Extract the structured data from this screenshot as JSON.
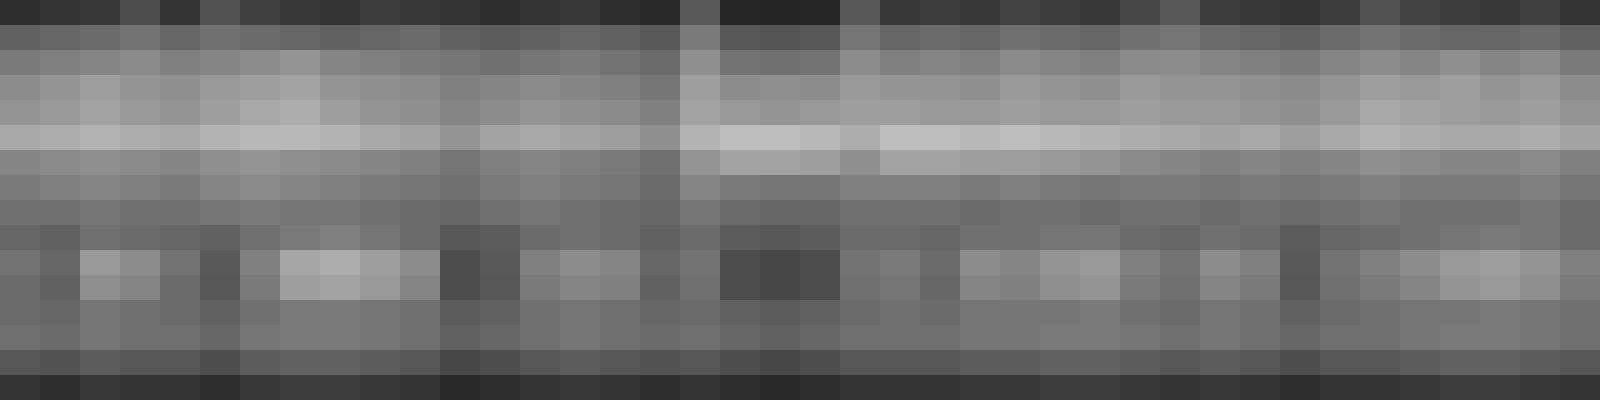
{
  "chart_data": {
    "type": "heatmap",
    "tick_labels": false,
    "color_range": [
      0,
      100
    ],
    "cells": [
      [
        18,
        20,
        22,
        30,
        20,
        32,
        25,
        22,
        20,
        24,
        22,
        20,
        18,
        20,
        22,
        18,
        16,
        35,
        15,
        14,
        15,
        34,
        22,
        24,
        22,
        26,
        24,
        22,
        28,
        34,
        24,
        22,
        20,
        24,
        32,
        26,
        24,
        22,
        25,
        20
      ],
      [
        38,
        40,
        42,
        45,
        40,
        44,
        42,
        40,
        38,
        40,
        42,
        38,
        36,
        38,
        40,
        38,
        35,
        48,
        34,
        33,
        34,
        46,
        40,
        42,
        40,
        44,
        42,
        40,
        44,
        46,
        42,
        40,
        38,
        42,
        45,
        42,
        40,
        40,
        42,
        38
      ],
      [
        48,
        50,
        52,
        54,
        50,
        52,
        55,
        58,
        52,
        50,
        48,
        46,
        44,
        46,
        48,
        45,
        42,
        56,
        45,
        44,
        45,
        55,
        50,
        52,
        50,
        54,
        52,
        50,
        54,
        55,
        52,
        50,
        48,
        52,
        55,
        52,
        56,
        52,
        54,
        48
      ],
      [
        55,
        58,
        62,
        58,
        56,
        60,
        62,
        64,
        58,
        56,
        54,
        50,
        52,
        54,
        52,
        50,
        46,
        62,
        55,
        56,
        55,
        60,
        58,
        58,
        56,
        60,
        58,
        56,
        60,
        58,
        58,
        56,
        54,
        58,
        62,
        60,
        62,
        58,
        60,
        55
      ],
      [
        58,
        60,
        64,
        60,
        58,
        62,
        66,
        68,
        62,
        58,
        56,
        52,
        55,
        58,
        56,
        54,
        50,
        64,
        60,
        58,
        60,
        62,
        62,
        60,
        60,
        62,
        60,
        60,
        62,
        60,
        60,
        58,
        56,
        60,
        66,
        64,
        62,
        60,
        62,
        58
      ],
      [
        66,
        68,
        70,
        68,
        66,
        70,
        72,
        72,
        70,
        66,
        64,
        58,
        64,
        66,
        64,
        62,
        56,
        70,
        74,
        74,
        72,
        68,
        74,
        74,
        72,
        74,
        72,
        70,
        68,
        66,
        64,
        66,
        62,
        66,
        70,
        68,
        66,
        66,
        68,
        64
      ],
      [
        52,
        54,
        56,
        54,
        52,
        56,
        58,
        56,
        54,
        52,
        50,
        46,
        50,
        52,
        50,
        48,
        44,
        58,
        64,
        64,
        62,
        56,
        64,
        64,
        62,
        62,
        60,
        58,
        54,
        52,
        50,
        52,
        50,
        52,
        56,
        54,
        52,
        52,
        54,
        50
      ],
      [
        48,
        50,
        52,
        50,
        48,
        52,
        54,
        52,
        50,
        48,
        46,
        44,
        48,
        50,
        48,
        46,
        42,
        52,
        48,
        46,
        46,
        50,
        50,
        50,
        48,
        50,
        48,
        46,
        48,
        48,
        46,
        48,
        46,
        48,
        50,
        48,
        48,
        48,
        50,
        46
      ],
      [
        44,
        44,
        46,
        44,
        44,
        46,
        48,
        46,
        46,
        44,
        42,
        40,
        44,
        46,
        44,
        42,
        40,
        46,
        42,
        40,
        40,
        44,
        44,
        44,
        42,
        44,
        44,
        42,
        44,
        44,
        42,
        44,
        42,
        44,
        46,
        44,
        44,
        44,
        46,
        42
      ],
      [
        40,
        38,
        44,
        42,
        40,
        38,
        44,
        48,
        50,
        46,
        42,
        34,
        36,
        42,
        44,
        42,
        38,
        42,
        36,
        34,
        36,
        42,
        42,
        40,
        44,
        44,
        46,
        46,
        42,
        40,
        44,
        42,
        36,
        40,
        42,
        44,
        46,
        48,
        46,
        42
      ],
      [
        45,
        40,
        60,
        55,
        45,
        35,
        50,
        65,
        68,
        62,
        55,
        30,
        35,
        50,
        55,
        52,
        40,
        45,
        30,
        28,
        30,
        45,
        48,
        42,
        55,
        52,
        58,
        60,
        50,
        45,
        55,
        50,
        35,
        45,
        50,
        55,
        60,
        62,
        58,
        50
      ],
      [
        42,
        38,
        56,
        52,
        42,
        34,
        48,
        62,
        64,
        60,
        52,
        30,
        34,
        48,
        52,
        50,
        38,
        44,
        30,
        28,
        30,
        44,
        46,
        40,
        52,
        50,
        56,
        58,
        48,
        44,
        52,
        48,
        34,
        44,
        48,
        52,
        58,
        60,
        56,
        48
      ],
      [
        42,
        40,
        46,
        44,
        42,
        38,
        44,
        48,
        48,
        46,
        44,
        36,
        38,
        44,
        46,
        44,
        40,
        42,
        38,
        36,
        38,
        42,
        44,
        42,
        46,
        46,
        46,
        48,
        44,
        42,
        46,
        44,
        38,
        42,
        44,
        46,
        46,
        48,
        46,
        44
      ],
      [
        44,
        42,
        46,
        44,
        44,
        40,
        46,
        48,
        48,
        46,
        44,
        38,
        40,
        44,
        46,
        44,
        42,
        44,
        40,
        38,
        40,
        44,
        44,
        44,
        46,
        46,
        48,
        48,
        46,
        44,
        46,
        44,
        40,
        44,
        44,
        46,
        48,
        48,
        46,
        44
      ],
      [
        34,
        32,
        36,
        34,
        34,
        30,
        36,
        38,
        38,
        36,
        34,
        28,
        30,
        34,
        36,
        34,
        32,
        34,
        30,
        28,
        30,
        34,
        34,
        34,
        36,
        36,
        38,
        38,
        36,
        34,
        36,
        34,
        30,
        34,
        34,
        36,
        38,
        38,
        36,
        34
      ],
      [
        20,
        18,
        22,
        20,
        20,
        18,
        22,
        24,
        24,
        22,
        20,
        16,
        18,
        20,
        22,
        20,
        18,
        20,
        18,
        16,
        18,
        20,
        20,
        20,
        22,
        22,
        24,
        24,
        22,
        20,
        22,
        20,
        18,
        20,
        20,
        22,
        24,
        24,
        22,
        20
      ]
    ]
  }
}
